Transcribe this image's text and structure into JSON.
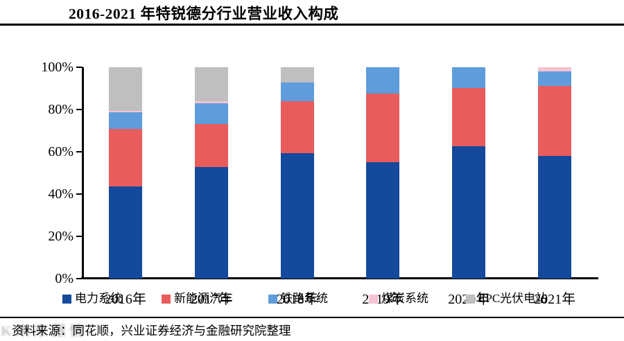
{
  "title": "2016-2021 年特锐德分行业营业收入构成",
  "chart_data": {
    "type": "bar",
    "stacked": true,
    "percent_stacked": true,
    "title": "2016-2021 年特锐德分行业营业收入构成",
    "categories": [
      "2016年",
      "2017年",
      "2018年",
      "2019年",
      "2020年",
      "2021年"
    ],
    "series": [
      {
        "name": "电力系统",
        "color": "#14499B",
        "values": [
          43.5,
          52.8,
          59.3,
          55.0,
          62.6,
          58.0
        ]
      },
      {
        "name": "新能源汽车",
        "color": "#E95C5C",
        "values": [
          27.2,
          20.3,
          24.5,
          32.6,
          27.7,
          33.3
        ]
      },
      {
        "name": "铁路系统",
        "color": "#5F9CDB",
        "values": [
          7.9,
          9.8,
          9.0,
          12.4,
          9.7,
          6.8
        ]
      },
      {
        "name": "煤炭系统",
        "color": "#F5C3D2",
        "values": [
          0.9,
          0.9,
          0.0,
          0.0,
          0.0,
          1.9
        ]
      },
      {
        "name": "EPC光伏电站",
        "color": "#BFBFBF",
        "values": [
          20.5,
          16.2,
          7.2,
          0.0,
          0.0,
          0.0
        ]
      }
    ],
    "yticks": [
      {
        "value": 100,
        "label": "100%"
      },
      {
        "value": 80,
        "label": "80%"
      },
      {
        "value": 60,
        "label": "60%"
      },
      {
        "value": 40,
        "label": "40%"
      },
      {
        "value": 20,
        "label": "20%"
      },
      {
        "value": 0,
        "label": "0%"
      }
    ],
    "ylim": [
      0,
      100
    ],
    "grid": false,
    "legend_position": "bottom",
    "axis_color": "#000000"
  },
  "footer": {
    "source": "资料来源：同花顺，兴业证券经济与金融研究院整理",
    "watermark": "K未来源情"
  }
}
